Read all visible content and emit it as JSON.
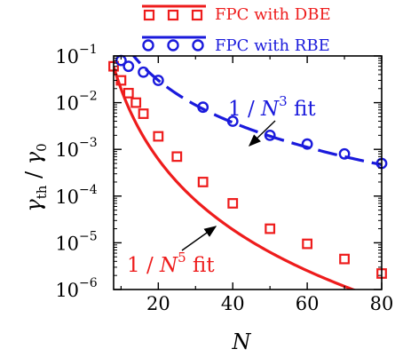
{
  "colors": {
    "dbe": "#ee1c1c",
    "rbe": "#1a1adc",
    "axis": "#000000"
  },
  "chart_data": {
    "type": "scatter",
    "xlabel": "N",
    "ylabel": "γth / γ0",
    "xlim": [
      8,
      80
    ],
    "ylim": [
      1e-06,
      0.1
    ],
    "yscale": "log",
    "xticks": [
      20,
      40,
      60,
      80
    ],
    "xtick_labels": [
      "20",
      "40",
      "60",
      "80"
    ],
    "yticks": [
      1e-06,
      1e-05,
      0.0001,
      0.001,
      0.01,
      0.1
    ],
    "ytick_labels": [
      {
        "base": "10",
        "exp": "−6"
      },
      {
        "base": "10",
        "exp": "−5"
      },
      {
        "base": "10",
        "exp": "−4"
      },
      {
        "base": "10",
        "exp": "−3"
      },
      {
        "base": "10",
        "exp": "−2"
      },
      {
        "base": "10",
        "exp": "−1"
      }
    ],
    "grid": false,
    "legend_position": "top",
    "series": [
      {
        "name": "FPC with DBE",
        "marker": "square",
        "color": "#ee1c1c",
        "x": [
          8,
          10,
          12,
          14,
          16,
          20,
          25,
          32,
          40,
          50,
          60,
          70,
          80
        ],
        "y": [
          0.06,
          0.03,
          0.016,
          0.01,
          0.0058,
          0.0019,
          0.0007,
          0.0002,
          7e-05,
          2e-05,
          9.5e-06,
          4.5e-06,
          2.2e-06
        ]
      },
      {
        "name": "FPC with RBE",
        "marker": "circle",
        "color": "#1a1adc",
        "x": [
          10,
          12,
          16,
          20,
          32,
          40,
          50,
          60,
          70,
          80
        ],
        "y": [
          0.08,
          0.06,
          0.045,
          0.03,
          0.008,
          0.004,
          0.002,
          0.0013,
          0.0008,
          0.0005
        ]
      }
    ],
    "fits": [
      {
        "label": {
          "prefix": "1 / ",
          "var": "N",
          "exp": "5",
          "suffix": " fit"
        },
        "color": "#ee1c1c",
        "style": "solid",
        "power": 5,
        "anchor": [
          8,
          0.06
        ]
      },
      {
        "label": {
          "prefix": "1 / ",
          "var": "N",
          "exp": "3",
          "suffix": " fit"
        },
        "color": "#1a1adc",
        "style": "dashed",
        "power": 3,
        "anchor": [
          20,
          0.03
        ]
      }
    ]
  }
}
